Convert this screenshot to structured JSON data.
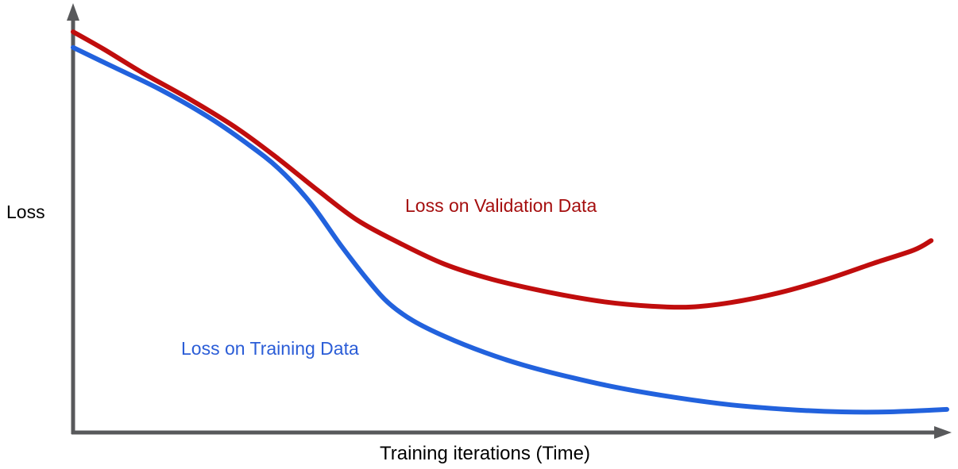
{
  "page": {
    "background": "#ffffff"
  },
  "chart_data": {
    "type": "line",
    "title": "",
    "xlabel": "Training iterations (Time)",
    "ylabel": "Loss",
    "x_range": [
      0,
      100
    ],
    "y_range": [
      0,
      1
    ],
    "grid": false,
    "legend_position": "inline-labels",
    "axis_color": "#58595b",
    "text_color": "#000000",
    "series": [
      {
        "name": "Loss on Validation Data",
        "color": "#c00d0d",
        "label_color": "#a50e0e",
        "points": [
          [
            0,
            0.971
          ],
          [
            3.5,
            0.929
          ],
          [
            8,
            0.871
          ],
          [
            13.5,
            0.806
          ],
          [
            18.9,
            0.735
          ],
          [
            23.5,
            0.663
          ],
          [
            28,
            0.587
          ],
          [
            32.5,
            0.515
          ],
          [
            37.1,
            0.462
          ],
          [
            42.5,
            0.408
          ],
          [
            48,
            0.371
          ],
          [
            54.4,
            0.34
          ],
          [
            60.7,
            0.317
          ],
          [
            66.2,
            0.306
          ],
          [
            70.7,
            0.304
          ],
          [
            75.3,
            0.315
          ],
          [
            80.7,
            0.338
          ],
          [
            86.2,
            0.371
          ],
          [
            91.6,
            0.41
          ],
          [
            96.2,
            0.442
          ],
          [
            98.2,
            0.465
          ]
        ]
      },
      {
        "name": "Loss on Training Data",
        "color": "#2262dd",
        "label_color": "#2b5dd7",
        "points": [
          [
            0,
            0.933
          ],
          [
            4.4,
            0.888
          ],
          [
            9.8,
            0.833
          ],
          [
            15.3,
            0.767
          ],
          [
            19.8,
            0.702
          ],
          [
            23.5,
            0.64
          ],
          [
            27.1,
            0.558
          ],
          [
            30.7,
            0.452
          ],
          [
            33.9,
            0.365
          ],
          [
            36.2,
            0.312
          ],
          [
            38.9,
            0.271
          ],
          [
            42.5,
            0.233
          ],
          [
            47.1,
            0.194
          ],
          [
            51.6,
            0.163
          ],
          [
            57.1,
            0.133
          ],
          [
            62.5,
            0.108
          ],
          [
            68.9,
            0.085
          ],
          [
            75.3,
            0.067
          ],
          [
            81.6,
            0.056
          ],
          [
            88,
            0.05
          ],
          [
            93.5,
            0.05
          ],
          [
            100,
            0.056
          ]
        ]
      }
    ]
  }
}
